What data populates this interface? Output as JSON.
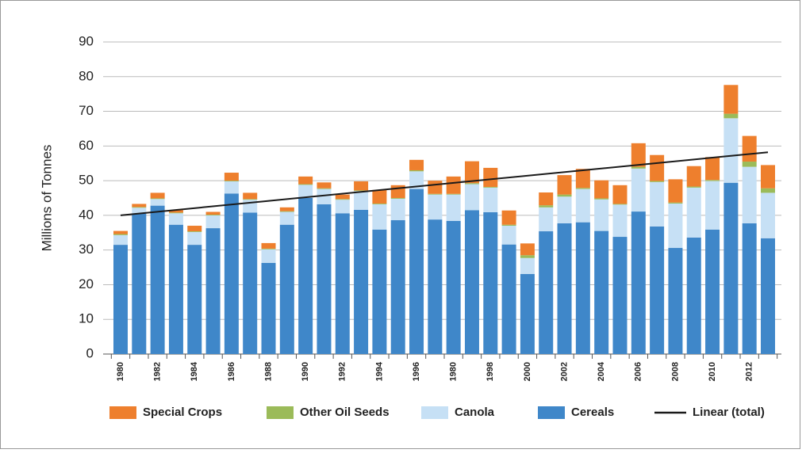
{
  "chart_data": {
    "type": "stacked-bar",
    "ylabel": "Millions of Tonnes",
    "categories": [
      "1980",
      null,
      "1982",
      null,
      "1984",
      null,
      "1986",
      null,
      "1988",
      null,
      "1990",
      null,
      "1992",
      null,
      "1994",
      null,
      "1996",
      null,
      "1980",
      null,
      "1998",
      null,
      "2000",
      null,
      "2002",
      null,
      "2004",
      null,
      "2006",
      null,
      "2008",
      null,
      "2010",
      null,
      "2012",
      null
    ],
    "series": [
      {
        "name": "Cereals",
        "color": "#3f87c9",
        "values": [
          31.5,
          40.5,
          42.8,
          37.3,
          31.5,
          36.3,
          46.3,
          40.8,
          26.3,
          37.3,
          45,
          43.2,
          40.6,
          41.6,
          35.9,
          38.6,
          47.6,
          38.8,
          38.4,
          41.5,
          40.9,
          31.6,
          23.1,
          35.4,
          37.7,
          38,
          35.5,
          33.8,
          41.1,
          36.8,
          30.6,
          33.6,
          35.9,
          49.4,
          37.7,
          33.4
        ]
      },
      {
        "name": "Canola",
        "color": "#c6e0f5",
        "values": [
          2.8,
          1.7,
          1.9,
          3.3,
          3.7,
          3.7,
          3.5,
          3.7,
          3.9,
          3.7,
          3.8,
          4.4,
          3.9,
          5.4,
          7.3,
          6.2,
          5.1,
          7.2,
          7.6,
          7.5,
          7.1,
          5.4,
          4.6,
          6.9,
          7.7,
          9.6,
          9.1,
          9.3,
          12.4,
          12.8,
          12.8,
          14.4,
          14,
          18.6,
          16.3,
          13.1
        ]
      },
      {
        "name": "Other Oil Seeds",
        "color": "#9bbb59",
        "values": [
          0.3,
          0.2,
          0.2,
          0.2,
          0.2,
          0.2,
          0.2,
          0.2,
          0.2,
          0.2,
          0.2,
          0.2,
          0.2,
          0.2,
          0.2,
          0.2,
          0.3,
          0.2,
          0.2,
          0.3,
          0.2,
          0.3,
          0.8,
          0.6,
          0.6,
          0.3,
          0.3,
          0.2,
          0.5,
          0.3,
          0.3,
          0.3,
          0.3,
          1.3,
          1.5,
          1.3
        ]
      },
      {
        "name": "Special Crops",
        "color": "#ee7f2d",
        "values": [
          0.9,
          0.9,
          1.6,
          0.7,
          1.6,
          0.8,
          2.3,
          1.8,
          1.6,
          1.1,
          2.2,
          1.7,
          1.3,
          2.6,
          3.9,
          3.7,
          3.0,
          3.8,
          5,
          6.3,
          5.5,
          4.1,
          3.4,
          3.7,
          5.6,
          5.5,
          5.2,
          5.4,
          6.8,
          7.5,
          6.7,
          5.9,
          6.6,
          8.3,
          7.4,
          6.7
        ]
      }
    ],
    "trend": {
      "name": "Linear (total)",
      "color": "#1a1a1a",
      "values": [
        40.0,
        58.2
      ]
    },
    "ylim": [
      0,
      90
    ],
    "yticks": [
      0,
      10,
      20,
      30,
      40,
      50,
      60,
      70,
      80,
      90
    ],
    "grid": true
  }
}
